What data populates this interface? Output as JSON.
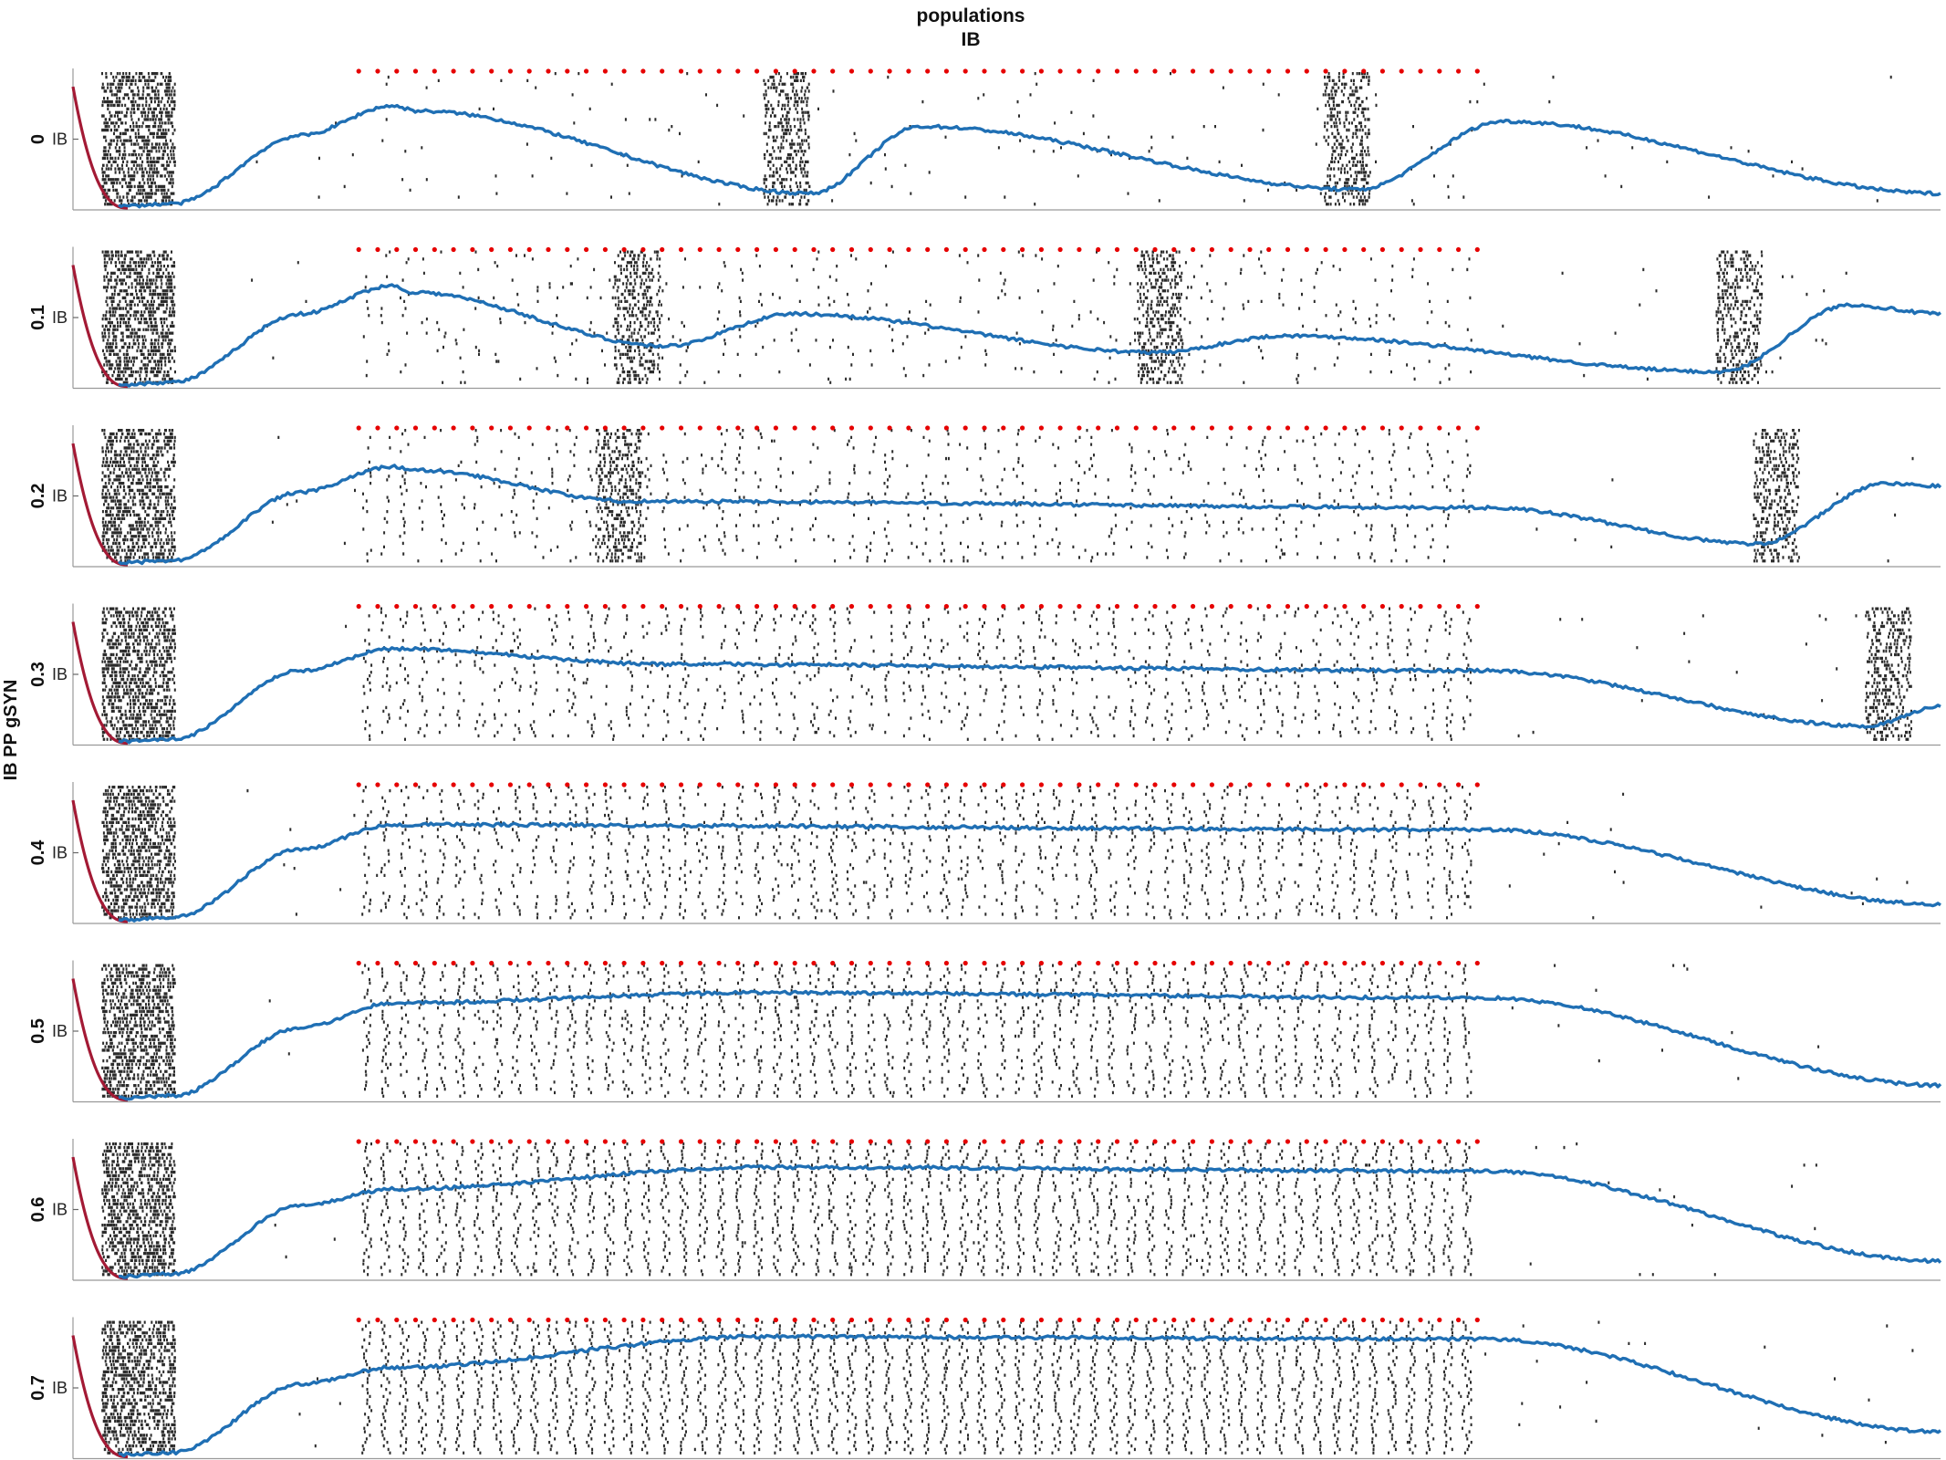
{
  "title_line1": "populations",
  "title_line2": "IB",
  "ylabel": "IB PP gSYN",
  "chart_data": {
    "type": "raster",
    "title": "populations IB",
    "ylabel": "IB PP gSYN",
    "population_label": "IB",
    "grid": false,
    "colors": {
      "spikes": "#2b2b2b",
      "envelope": "#1f6fb4",
      "initial_transient": "#a31a35",
      "stimulus_markers": "#e60000"
    },
    "stimulus_train": {
      "start_fraction": 0.153,
      "end_fraction": 0.752,
      "pulse_count": 60
    },
    "rows": [
      {
        "label": "0",
        "burst_starts": [
          0.37,
          0.67
        ],
        "envelope": [
          [
            0.0,
            0.0
          ],
          [
            0.03,
            0.02
          ],
          [
            0.1,
            0.55
          ],
          [
            0.15,
            0.78
          ],
          [
            0.165,
            0.74
          ],
          [
            0.38,
            0.1
          ],
          [
            0.44,
            0.62
          ],
          [
            0.68,
            0.13
          ],
          [
            0.76,
            0.66
          ],
          [
            1.0,
            0.1
          ]
        ]
      },
      {
        "label": "0.1",
        "burst_starts": [
          0.29,
          0.57,
          0.88
        ],
        "envelope": [
          [
            0.0,
            0.0
          ],
          [
            0.03,
            0.02
          ],
          [
            0.1,
            0.55
          ],
          [
            0.15,
            0.77
          ],
          [
            0.16,
            0.72
          ],
          [
            0.3,
            0.3
          ],
          [
            0.37,
            0.55
          ],
          [
            0.57,
            0.25
          ],
          [
            0.64,
            0.38
          ],
          [
            0.88,
            0.1
          ],
          [
            0.95,
            0.62
          ],
          [
            1.0,
            0.55
          ]
        ]
      },
      {
        "label": "0.2",
        "burst_starts": [
          0.28,
          0.9
        ],
        "envelope": [
          [
            0.0,
            0.0
          ],
          [
            0.03,
            0.02
          ],
          [
            0.1,
            0.55
          ],
          [
            0.15,
            0.75
          ],
          [
            0.165,
            0.72
          ],
          [
            0.28,
            0.48
          ],
          [
            0.75,
            0.43
          ],
          [
            0.9,
            0.15
          ],
          [
            0.97,
            0.62
          ],
          [
            1.0,
            0.6
          ]
        ]
      },
      {
        "label": "0.3",
        "burst_starts": [
          0.96
        ],
        "envelope": [
          [
            0.0,
            0.0
          ],
          [
            0.03,
            0.02
          ],
          [
            0.1,
            0.55
          ],
          [
            0.15,
            0.72
          ],
          [
            0.3,
            0.6
          ],
          [
            0.75,
            0.55
          ],
          [
            0.96,
            0.12
          ],
          [
            1.0,
            0.27
          ]
        ]
      },
      {
        "label": "0.4",
        "burst_starts": [],
        "envelope": [
          [
            0.0,
            0.0
          ],
          [
            0.03,
            0.02
          ],
          [
            0.1,
            0.55
          ],
          [
            0.15,
            0.74
          ],
          [
            0.75,
            0.7
          ],
          [
            1.0,
            0.12
          ]
        ]
      },
      {
        "label": "0.5",
        "burst_starts": [],
        "envelope": [
          [
            0.0,
            0.0
          ],
          [
            0.03,
            0.02
          ],
          [
            0.1,
            0.55
          ],
          [
            0.15,
            0.74
          ],
          [
            0.35,
            0.82
          ],
          [
            0.75,
            0.78
          ],
          [
            1.0,
            0.1
          ]
        ]
      },
      {
        "label": "0.6",
        "burst_starts": [],
        "envelope": [
          [
            0.0,
            0.0
          ],
          [
            0.03,
            0.02
          ],
          [
            0.1,
            0.55
          ],
          [
            0.15,
            0.68
          ],
          [
            0.35,
            0.85
          ],
          [
            0.75,
            0.82
          ],
          [
            1.0,
            0.12
          ]
        ]
      },
      {
        "label": "0.7",
        "burst_starts": [],
        "envelope": [
          [
            0.0,
            0.0
          ],
          [
            0.03,
            0.02
          ],
          [
            0.1,
            0.55
          ],
          [
            0.15,
            0.68
          ],
          [
            0.35,
            0.92
          ],
          [
            0.75,
            0.9
          ],
          [
            1.0,
            0.18
          ]
        ]
      }
    ]
  }
}
